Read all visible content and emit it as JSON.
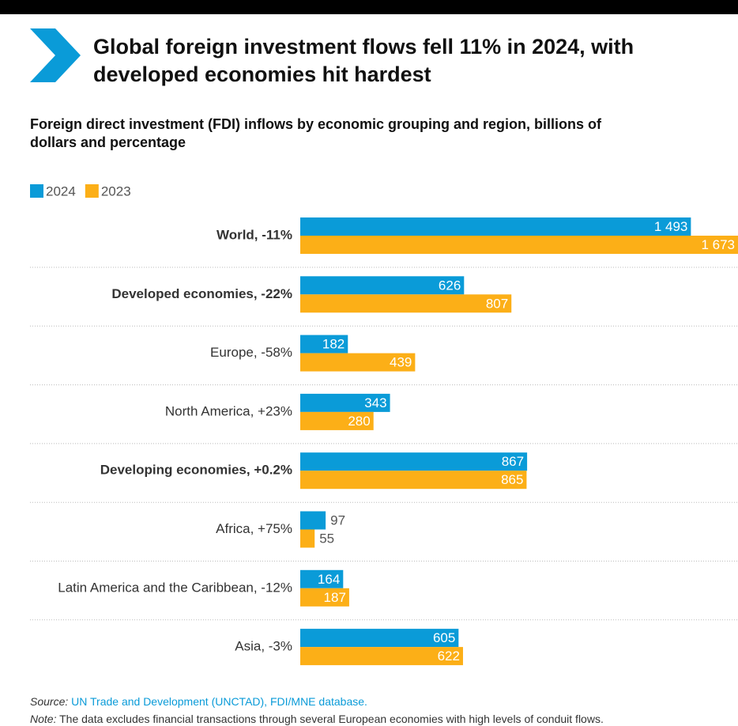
{
  "chart_data": {
    "type": "bar",
    "orientation": "horizontal",
    "title": [
      "Global foreign investment flows fell 11% in 2024, with",
      "developed economies hit hardest"
    ],
    "subtitle": [
      "Foreign direct investment (FDI) inflows by economic grouping and region, billions of",
      "dollars and percentage"
    ],
    "categories": [
      "World, -11%",
      "Developed economies, -22%",
      "Europe, -58%",
      "North America, +23%",
      "Developing economies, +0.2%",
      "Africa, +75%",
      "Latin America and the Caribbean, -12%",
      "Asia, -3%"
    ],
    "bold_categories": [
      true,
      true,
      false,
      false,
      true,
      false,
      false,
      false
    ],
    "series": [
      {
        "name": "2024",
        "color": "#0a9bd8",
        "values": [
          1493,
          626,
          182,
          343,
          867,
          97,
          164,
          605
        ],
        "value_labels": [
          "1 493",
          "626",
          "182",
          "343",
          "867",
          "97",
          "164",
          "605"
        ]
      },
      {
        "name": "2023",
        "color": "#fcaf17",
        "values": [
          1673,
          807,
          439,
          280,
          865,
          55,
          187,
          622
        ],
        "value_labels": [
          "1 673",
          "807",
          "439",
          "280",
          "865",
          "55",
          "187",
          "622"
        ]
      }
    ],
    "xlim": [
      0,
      1673
    ],
    "legend": "top-left",
    "source_label": "Source:",
    "source": "UN Trade and Development (UNCTAD), FDI/MNE database.",
    "note_label": "Note:",
    "note": "The data excludes financial transactions through several European economies with high levels of conduit flows."
  }
}
